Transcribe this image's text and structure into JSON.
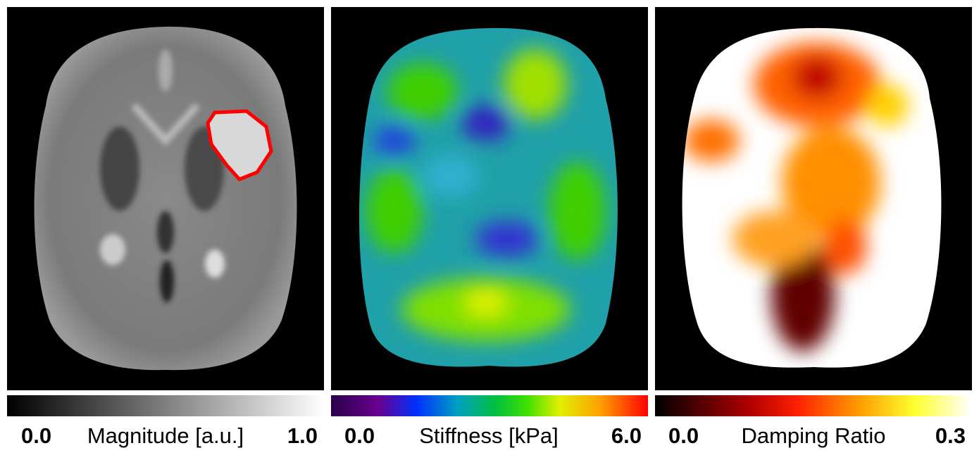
{
  "panels": [
    {
      "colorbar": {
        "min": "0.0",
        "label": "Magnitude [a.u.]",
        "max": "1.0"
      }
    },
    {
      "colorbar": {
        "min": "0.0",
        "label": "Stiffness [kPa]",
        "max": "6.0"
      }
    },
    {
      "colorbar": {
        "min": "0.0",
        "label": "Damping Ratio",
        "max": "0.3"
      }
    }
  ]
}
